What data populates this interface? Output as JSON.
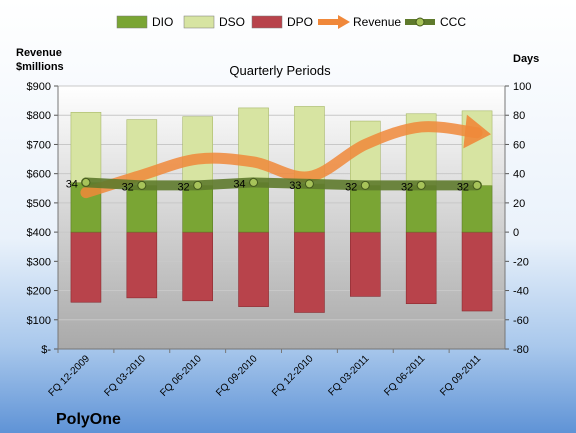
{
  "chart_data": {
    "type": "bar",
    "title": "Quarterly Periods",
    "company": "PolyOne",
    "y_left_label": [
      "Revenue",
      "$millions"
    ],
    "y_right_label": "Days",
    "y_left_ticks": [
      "$-",
      "$100",
      "$200",
      "$300",
      "$400",
      "$500",
      "$600",
      "$700",
      "$800",
      "$900"
    ],
    "y_right_ticks": [
      "-80",
      "-60",
      "-40",
      "-20",
      "0",
      "20",
      "40",
      "60",
      "80",
      "100"
    ],
    "y_left_range": [
      0,
      900
    ],
    "y_right_range": [
      -80,
      100
    ],
    "categories": [
      "FQ 12-2009",
      "FQ 03-2010",
      "FQ 06-2010",
      "FQ 09-2010",
      "FQ 12-2010",
      "FQ 03-2011",
      "FQ 06-2011",
      "FQ 09-2011"
    ],
    "legend_position": "top",
    "series": [
      {
        "name": "DIO",
        "axis": "right",
        "values": [
          34,
          32,
          32,
          34,
          33,
          32,
          32,
          32
        ],
        "color": "#7aa534"
      },
      {
        "name": "DSO",
        "axis": "right",
        "values": [
          48,
          45,
          47,
          51,
          53,
          44,
          49,
          51
        ],
        "color": "#d7e4a2"
      },
      {
        "name": "DPO",
        "axis": "right",
        "values": [
          -48,
          -45,
          -47,
          -51,
          -55,
          -44,
          -49,
          -54
        ],
        "color": "#b8434b"
      },
      {
        "name": "Revenue",
        "axis": "left",
        "values": [
          535,
          595,
          650,
          640,
          590,
          700,
          760,
          740
        ],
        "color": "#f0883a"
      },
      {
        "name": "CCC",
        "axis": "right",
        "values": [
          34,
          32,
          32,
          34,
          33,
          32,
          32,
          32
        ],
        "labels": [
          "34",
          "32",
          "32",
          "34",
          "33",
          "32",
          "32",
          "32"
        ],
        "color": "#5e7a2c"
      }
    ]
  }
}
